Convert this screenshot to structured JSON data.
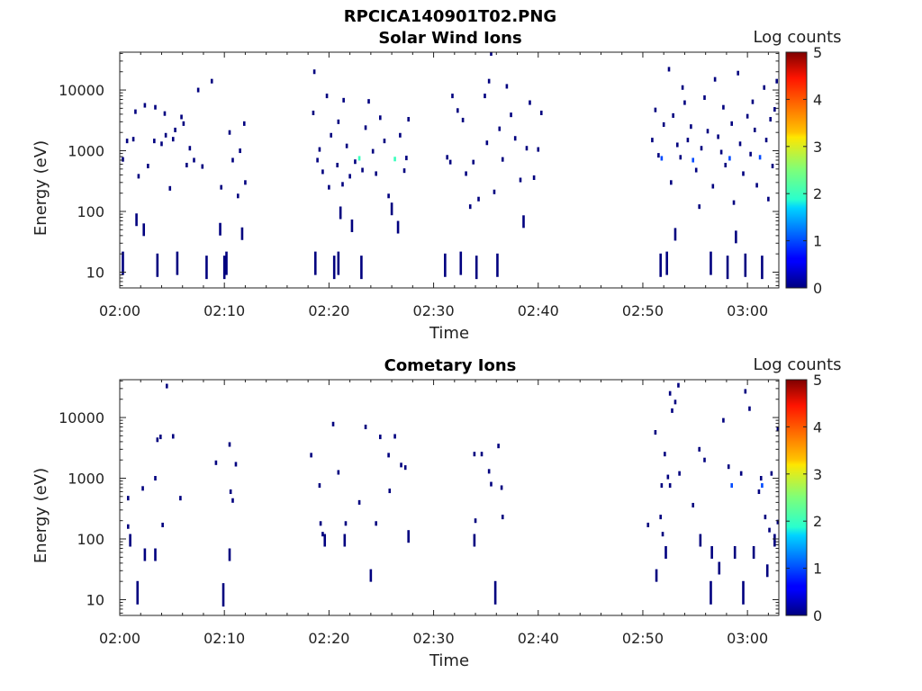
{
  "figure_title": "RPCICA140901T02.PNG",
  "chart_data": [
    {
      "type": "heatmap",
      "title": "Solar Wind Ions",
      "xlabel": "Time",
      "ylabel": "Energy (eV)",
      "xticks": [
        "02:00",
        "02:10",
        "02:20",
        "02:30",
        "02:40",
        "02:50",
        "03:00"
      ],
      "xlim_minutes": [
        0,
        63
      ],
      "yscale": "log",
      "yticks": [
        10,
        100,
        1000,
        10000
      ],
      "ytick_labels": [
        "10",
        "100",
        "1000",
        "10000"
      ],
      "ylim": [
        5.5,
        42000
      ],
      "colorbar": {
        "label": "Log counts",
        "min": 0,
        "max": 5,
        "ticks": [
          "0",
          "1",
          "2",
          "3",
          "4",
          "5"
        ]
      },
      "points": [
        [
          0.3,
          14,
          0
        ],
        [
          0.3,
          720,
          0
        ],
        [
          0.7,
          1450,
          0
        ],
        [
          1.3,
          1550,
          0
        ],
        [
          1.5,
          4400,
          0
        ],
        [
          1.6,
          73,
          0
        ],
        [
          1.8,
          380,
          0
        ],
        [
          2.3,
          50,
          0
        ],
        [
          2.4,
          5600,
          0
        ],
        [
          2.7,
          560,
          0
        ],
        [
          3.3,
          1450,
          0
        ],
        [
          3.4,
          5200,
          0
        ],
        [
          3.6,
          13,
          0
        ],
        [
          4.0,
          1300,
          0
        ],
        [
          4.3,
          4100,
          0
        ],
        [
          4.4,
          1800,
          0
        ],
        [
          4.8,
          240,
          0
        ],
        [
          5.1,
          1550,
          0
        ],
        [
          5.3,
          2200,
          0
        ],
        [
          5.5,
          14,
          0
        ],
        [
          5.9,
          3600,
          0
        ],
        [
          6.1,
          2800,
          0
        ],
        [
          6.4,
          580,
          0
        ],
        [
          6.7,
          1100,
          0
        ],
        [
          7.1,
          700,
          0
        ],
        [
          7.5,
          10000,
          0
        ],
        [
          7.9,
          550,
          0
        ],
        [
          8.3,
          12,
          0
        ],
        [
          8.8,
          14000,
          0
        ],
        [
          9.6,
          51,
          0
        ],
        [
          9.7,
          250,
          0
        ],
        [
          10.0,
          12,
          0
        ],
        [
          10.2,
          14,
          0
        ],
        [
          10.5,
          2000,
          0
        ],
        [
          10.8,
          700,
          0
        ],
        [
          11.3,
          180,
          0
        ],
        [
          11.5,
          1000,
          0
        ],
        [
          11.7,
          43,
          0
        ],
        [
          11.9,
          2800,
          0
        ],
        [
          12.0,
          300,
          0
        ],
        [
          18.5,
          4200,
          0
        ],
        [
          18.6,
          20000,
          0
        ],
        [
          18.7,
          14,
          0
        ],
        [
          18.9,
          700,
          0
        ],
        [
          19.1,
          1050,
          0
        ],
        [
          19.4,
          450,
          0
        ],
        [
          19.8,
          8000,
          0
        ],
        [
          20.0,
          250,
          0
        ],
        [
          20.2,
          1800,
          0
        ],
        [
          20.5,
          12,
          0
        ],
        [
          20.8,
          580,
          0
        ],
        [
          20.9,
          14,
          0
        ],
        [
          20.9,
          3000,
          0
        ],
        [
          21.1,
          95,
          0
        ],
        [
          21.3,
          280,
          0
        ],
        [
          21.4,
          6800,
          0
        ],
        [
          21.7,
          1200,
          0
        ],
        [
          22.0,
          380,
          0
        ],
        [
          22.2,
          58,
          0
        ],
        [
          22.5,
          660,
          0
        ],
        [
          22.9,
          750,
          2
        ],
        [
          23.1,
          12,
          0
        ],
        [
          23.2,
          480,
          0
        ],
        [
          23.5,
          2400,
          0
        ],
        [
          23.8,
          6500,
          0
        ],
        [
          24.2,
          980,
          0
        ],
        [
          24.5,
          420,
          0
        ],
        [
          24.9,
          3500,
          0
        ],
        [
          25.3,
          1450,
          0
        ],
        [
          25.7,
          180,
          0
        ],
        [
          26.0,
          110,
          0
        ],
        [
          26.3,
          730,
          2
        ],
        [
          26.6,
          55,
          0
        ],
        [
          26.8,
          1800,
          0
        ],
        [
          27.2,
          470,
          0
        ],
        [
          27.4,
          760,
          0
        ],
        [
          27.6,
          3300,
          0
        ],
        [
          31.1,
          13,
          0
        ],
        [
          31.3,
          780,
          0
        ],
        [
          31.6,
          650,
          0
        ],
        [
          31.8,
          8000,
          0
        ],
        [
          32.3,
          4600,
          0
        ],
        [
          32.6,
          14,
          0
        ],
        [
          32.8,
          3200,
          0
        ],
        [
          33.1,
          420,
          0
        ],
        [
          33.5,
          120,
          0
        ],
        [
          33.8,
          650,
          0
        ],
        [
          34.1,
          12,
          0
        ],
        [
          34.3,
          160,
          0
        ],
        [
          34.9,
          8000,
          0
        ],
        [
          35.1,
          1350,
          0
        ],
        [
          35.3,
          14000,
          0
        ],
        [
          35.5,
          40000,
          0
        ],
        [
          35.8,
          210,
          0
        ],
        [
          36.1,
          13,
          0
        ],
        [
          36.3,
          2300,
          0
        ],
        [
          36.6,
          720,
          0
        ],
        [
          37.0,
          11500,
          0
        ],
        [
          37.4,
          3900,
          0
        ],
        [
          37.8,
          1600,
          0
        ],
        [
          38.3,
          330,
          0
        ],
        [
          38.6,
          68,
          0
        ],
        [
          38.9,
          1100,
          0
        ],
        [
          39.2,
          6200,
          0
        ],
        [
          39.6,
          360,
          0
        ],
        [
          40.0,
          1050,
          0
        ],
        [
          40.3,
          4200,
          0
        ],
        [
          50.9,
          1500,
          0
        ],
        [
          51.2,
          4700,
          0
        ],
        [
          51.5,
          840,
          0
        ],
        [
          51.7,
          13,
          0
        ],
        [
          51.8,
          750,
          1
        ],
        [
          52.0,
          2700,
          0
        ],
        [
          52.3,
          14,
          0
        ],
        [
          52.5,
          22000,
          0
        ],
        [
          52.7,
          300,
          0
        ],
        [
          52.9,
          3800,
          0
        ],
        [
          53.1,
          42,
          0
        ],
        [
          53.3,
          1250,
          0
        ],
        [
          53.6,
          780,
          0
        ],
        [
          53.8,
          11000,
          0
        ],
        [
          54.0,
          6200,
          0
        ],
        [
          54.3,
          1500,
          0
        ],
        [
          54.6,
          2500,
          0
        ],
        [
          54.8,
          700,
          1
        ],
        [
          55.1,
          480,
          0
        ],
        [
          55.4,
          120,
          0
        ],
        [
          55.6,
          1100,
          0
        ],
        [
          55.9,
          7500,
          0
        ],
        [
          56.2,
          2100,
          0
        ],
        [
          56.5,
          14,
          0
        ],
        [
          56.7,
          260,
          0
        ],
        [
          56.9,
          15000,
          0
        ],
        [
          57.2,
          1700,
          0
        ],
        [
          57.5,
          950,
          0
        ],
        [
          57.7,
          5200,
          0
        ],
        [
          57.9,
          580,
          0
        ],
        [
          58.1,
          12,
          0
        ],
        [
          58.3,
          750,
          1
        ],
        [
          58.5,
          2800,
          0
        ],
        [
          58.7,
          140,
          0
        ],
        [
          58.9,
          38,
          0
        ],
        [
          59.1,
          19000,
          0
        ],
        [
          59.3,
          1300,
          0
        ],
        [
          59.6,
          420,
          0
        ],
        [
          59.8,
          13,
          0
        ],
        [
          60.0,
          3700,
          0
        ],
        [
          60.3,
          880,
          0
        ],
        [
          60.5,
          6400,
          0
        ],
        [
          60.7,
          2200,
          0
        ],
        [
          60.9,
          270,
          0
        ],
        [
          61.2,
          780,
          1
        ],
        [
          61.4,
          12,
          0
        ],
        [
          61.6,
          11000,
          0
        ],
        [
          61.8,
          1500,
          0
        ],
        [
          62.0,
          160,
          0
        ],
        [
          62.2,
          3300,
          0
        ],
        [
          62.4,
          560,
          0
        ],
        [
          62.6,
          4800,
          0
        ],
        [
          62.8,
          14000,
          0
        ]
      ]
    },
    {
      "type": "heatmap",
      "title": "Cometary Ions",
      "xlabel": "Time",
      "ylabel": "Energy (eV)",
      "xticks": [
        "02:00",
        "02:10",
        "02:20",
        "02:30",
        "02:40",
        "02:50",
        "03:00"
      ],
      "xlim_minutes": [
        0,
        63
      ],
      "yscale": "log",
      "yticks": [
        10,
        100,
        1000,
        10000
      ],
      "ytick_labels": [
        "10",
        "100",
        "1000",
        "10000"
      ],
      "ylim": [
        5.5,
        42000
      ],
      "colorbar": {
        "label": "Log counts",
        "min": 0,
        "max": 5,
        "ticks": [
          "0",
          "1",
          "2",
          "3",
          "4",
          "5"
        ]
      },
      "points": [
        [
          0.8,
          470,
          0
        ],
        [
          0.8,
          160,
          0
        ],
        [
          1.0,
          95,
          0
        ],
        [
          1.7,
          13,
          0
        ],
        [
          2.2,
          680,
          0
        ],
        [
          2.4,
          55,
          0
        ],
        [
          3.4,
          1000,
          0
        ],
        [
          3.4,
          55,
          0
        ],
        [
          3.6,
          4300,
          0
        ],
        [
          3.9,
          4800,
          0
        ],
        [
          4.1,
          170,
          0
        ],
        [
          4.5,
          33000,
          0
        ],
        [
          5.1,
          4900,
          0
        ],
        [
          5.8,
          470,
          0
        ],
        [
          9.2,
          1800,
          0
        ],
        [
          9.9,
          12,
          0
        ],
        [
          10.5,
          3600,
          0
        ],
        [
          10.5,
          55,
          0
        ],
        [
          10.6,
          600,
          0
        ],
        [
          10.8,
          430,
          0
        ],
        [
          11.1,
          1700,
          0
        ],
        [
          18.3,
          2400,
          0
        ],
        [
          19.1,
          760,
          0
        ],
        [
          19.2,
          180,
          0
        ],
        [
          19.4,
          120,
          0
        ],
        [
          19.6,
          95,
          0
        ],
        [
          20.4,
          7800,
          0
        ],
        [
          20.9,
          1250,
          0
        ],
        [
          21.5,
          95,
          0
        ],
        [
          21.6,
          180,
          0
        ],
        [
          22.9,
          400,
          0
        ],
        [
          23.5,
          7000,
          0
        ],
        [
          24.0,
          25,
          0
        ],
        [
          24.5,
          180,
          0
        ],
        [
          24.9,
          4800,
          0
        ],
        [
          25.7,
          2400,
          0
        ],
        [
          25.8,
          620,
          0
        ],
        [
          26.3,
          4900,
          0
        ],
        [
          26.9,
          1650,
          0
        ],
        [
          27.3,
          1500,
          0
        ],
        [
          27.6,
          110,
          0
        ],
        [
          33.9,
          2500,
          0
        ],
        [
          33.9,
          95,
          0
        ],
        [
          34.0,
          200,
          0
        ],
        [
          34.6,
          2500,
          0
        ],
        [
          35.3,
          1300,
          0
        ],
        [
          35.5,
          800,
          0
        ],
        [
          35.9,
          13,
          0
        ],
        [
          36.2,
          3400,
          0
        ],
        [
          36.5,
          700,
          0
        ],
        [
          36.6,
          230,
          0
        ],
        [
          50.5,
          170,
          0
        ],
        [
          51.2,
          5700,
          0
        ],
        [
          51.3,
          25,
          0
        ],
        [
          51.7,
          230,
          0
        ],
        [
          51.8,
          760,
          0
        ],
        [
          51.9,
          120,
          0
        ],
        [
          52.1,
          2500,
          0
        ],
        [
          52.2,
          60,
          0
        ],
        [
          52.4,
          1050,
          0
        ],
        [
          52.6,
          760,
          0
        ],
        [
          52.6,
          25000,
          0
        ],
        [
          52.8,
          13000,
          0
        ],
        [
          53.1,
          18000,
          0
        ],
        [
          53.4,
          34000,
          0
        ],
        [
          53.5,
          1200,
          0
        ],
        [
          54.8,
          360,
          0
        ],
        [
          55.4,
          3000,
          0
        ],
        [
          55.5,
          95,
          0
        ],
        [
          55.9,
          2000,
          0
        ],
        [
          56.5,
          13,
          0
        ],
        [
          56.6,
          60,
          0
        ],
        [
          57.3,
          33,
          0
        ],
        [
          57.7,
          9000,
          0
        ],
        [
          58.2,
          1550,
          0
        ],
        [
          58.5,
          760,
          1
        ],
        [
          58.8,
          60,
          0
        ],
        [
          59.4,
          1200,
          0
        ],
        [
          59.6,
          13,
          0
        ],
        [
          59.8,
          27000,
          0
        ],
        [
          60.2,
          14000,
          0
        ],
        [
          60.6,
          60,
          0
        ],
        [
          61.1,
          600,
          0
        ],
        [
          61.3,
          1000,
          0
        ],
        [
          61.4,
          760,
          1
        ],
        [
          61.7,
          230,
          0
        ],
        [
          61.9,
          30,
          0
        ],
        [
          62.1,
          140,
          0
        ],
        [
          62.3,
          1200,
          0
        ],
        [
          62.6,
          95,
          0
        ],
        [
          62.9,
          6500,
          0
        ],
        [
          62.9,
          190,
          0
        ]
      ]
    }
  ]
}
